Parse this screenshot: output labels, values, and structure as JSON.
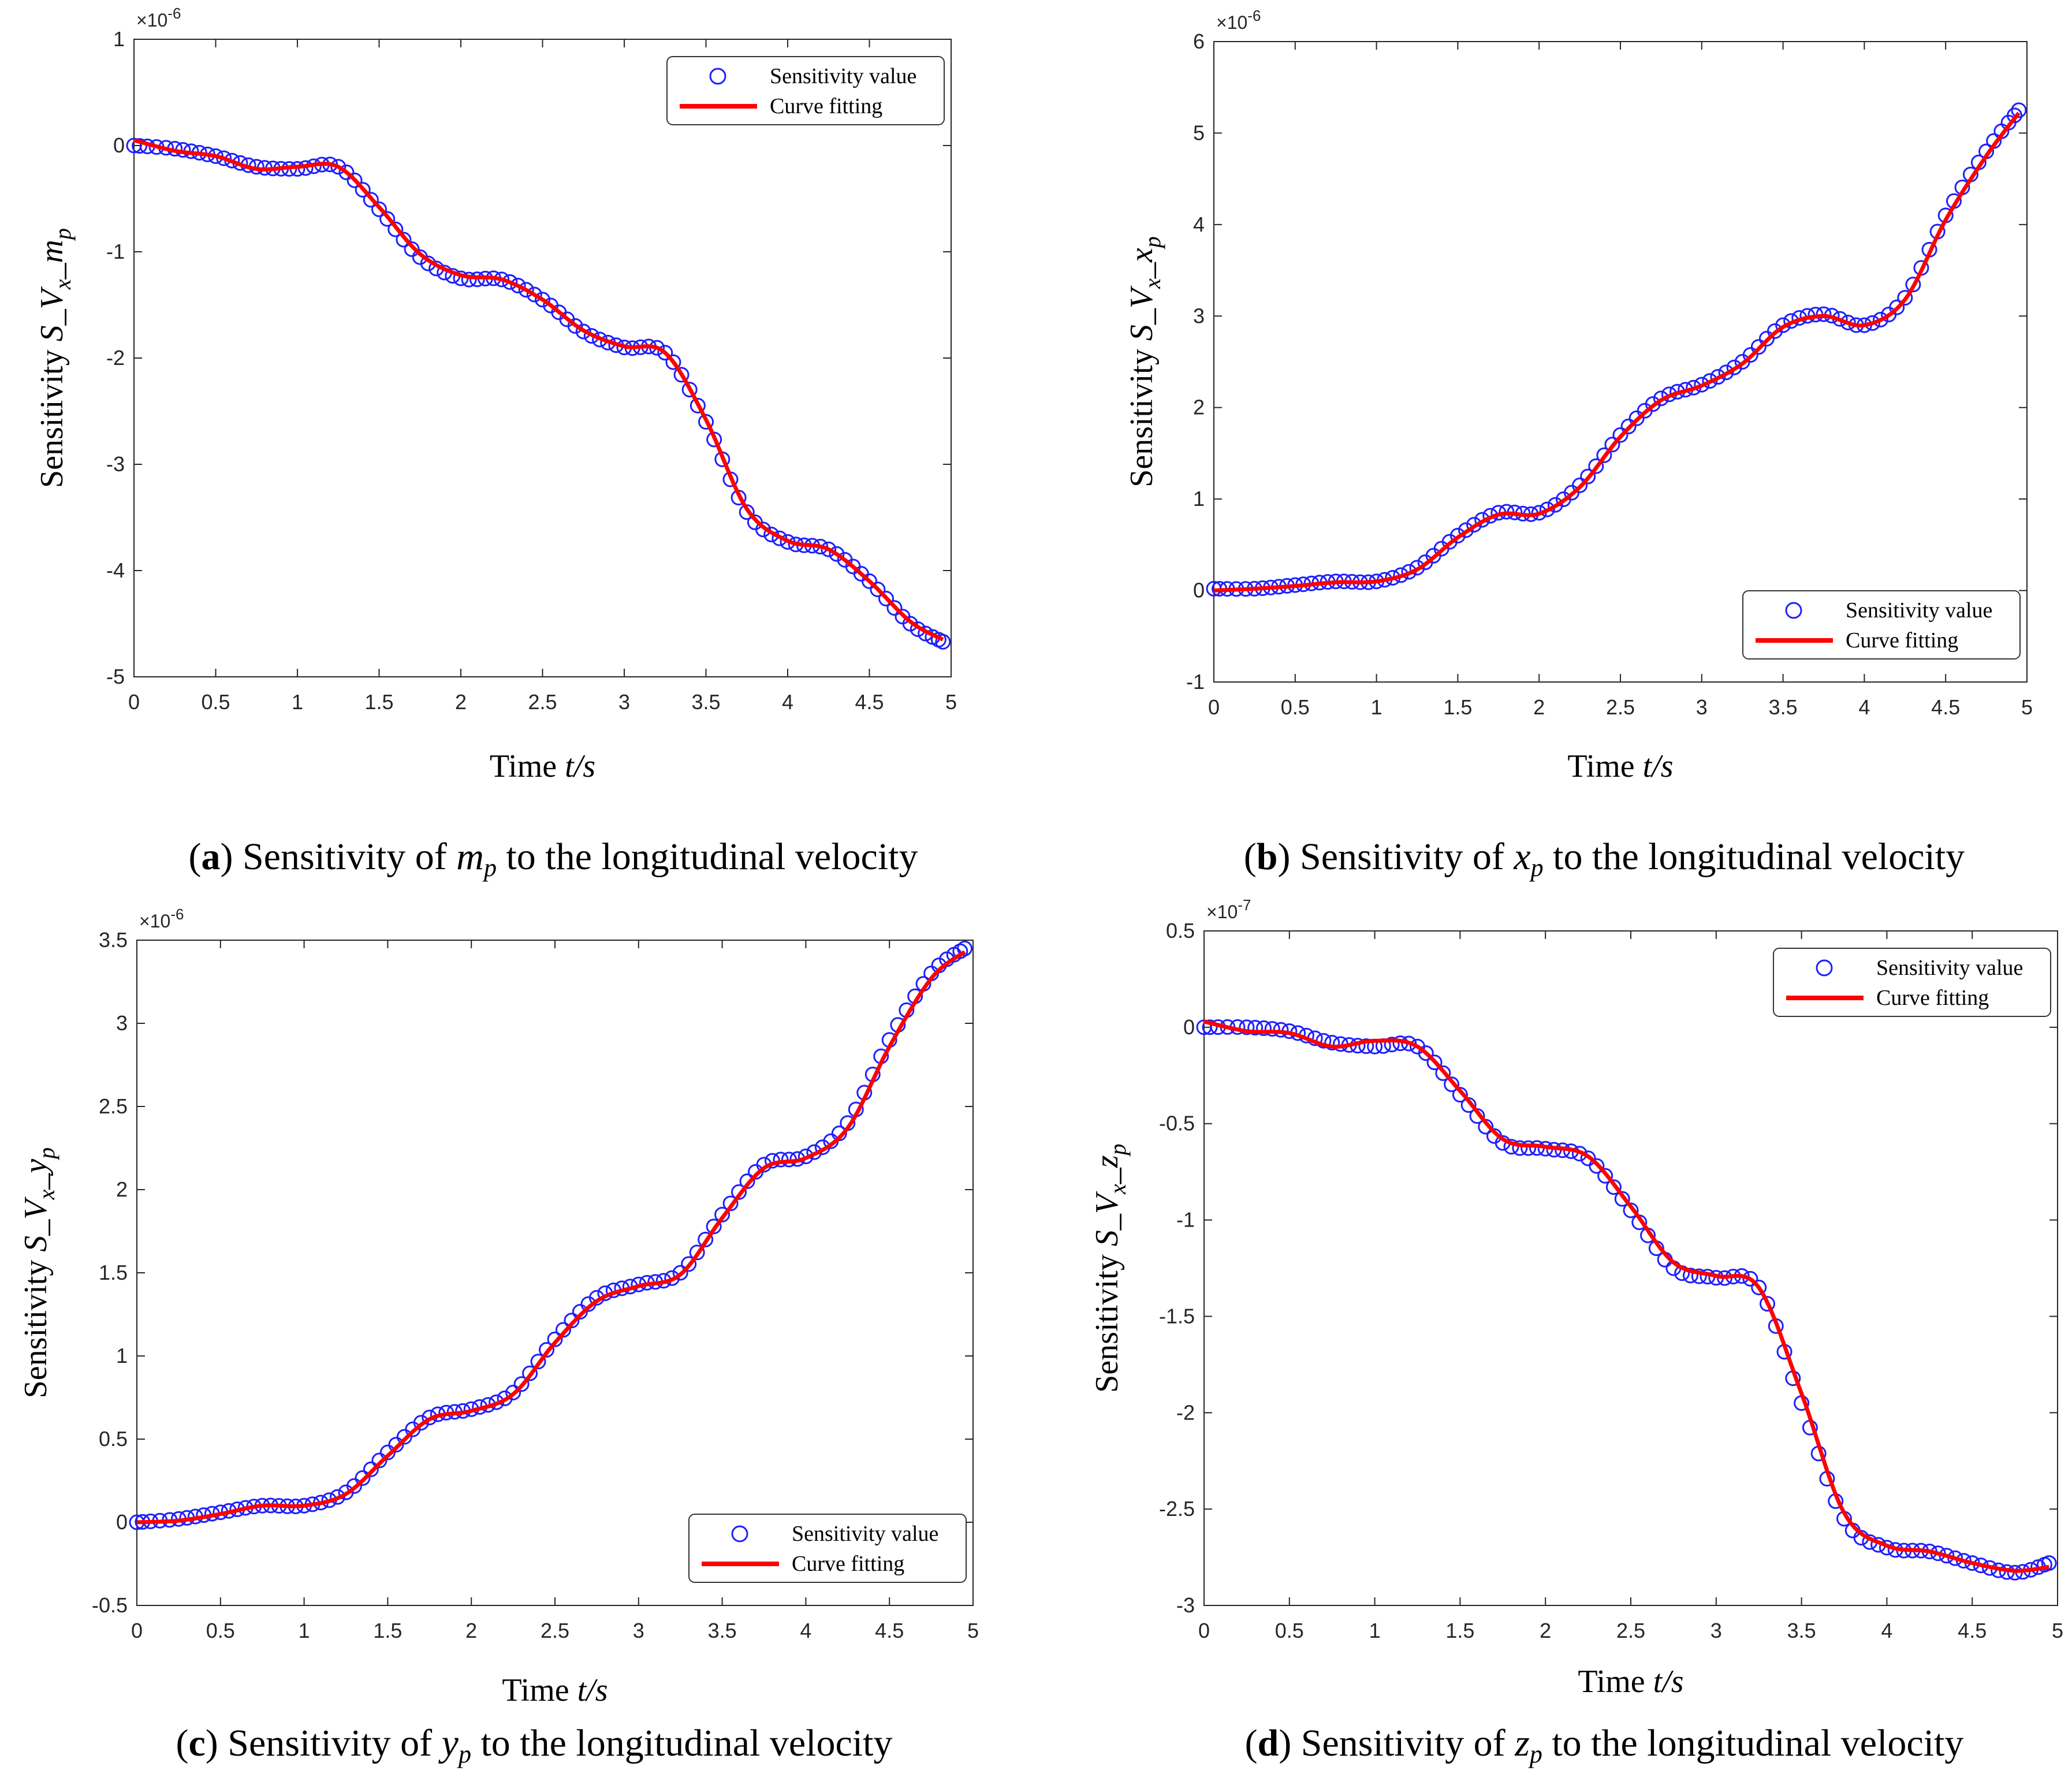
{
  "colors": {
    "markers": "#1f1fff",
    "fit": "#ff0000",
    "axes": "#262626",
    "frame": "#a0a0a0"
  },
  "legend": {
    "sensitivity_label": "Sensitivity value",
    "fit_label": "Curve fitting"
  },
  "x_axis": {
    "label_prefix": "Time ",
    "label_var": "t/s"
  },
  "y_axis": {
    "label_prefix": "Sensitivity  ",
    "label_var": "S_V",
    "label_sub": "x",
    "label_sep": "_"
  },
  "charts": [
    {
      "id": "a",
      "caption": {
        "letter": "a",
        "text": "Sensitivity of ",
        "var": "m",
        "sub": "p",
        "tail": " to the longitudinal velocity"
      },
      "param_var": "m",
      "param_sub": "p",
      "chart_data": {
        "type": "line",
        "xlabel": "Time t/s",
        "ylabel": "Sensitivity S_V_x_m_p",
        "exponent_label": "×10",
        "exponent_power": "-6",
        "xlim": [
          0,
          5
        ],
        "ylim": [
          -5,
          1
        ],
        "xticks": [
          "0",
          "0.5",
          "1",
          "1.5",
          "2",
          "2.5",
          "3",
          "3.5",
          "4",
          "4.5",
          "5"
        ],
        "yticks": [
          {
            "v": 1,
            "t": "1"
          },
          {
            "v": 0,
            "t": "0"
          },
          {
            "v": -1,
            "t": "-1"
          },
          {
            "v": -2,
            "t": "-2"
          },
          {
            "v": -3,
            "t": "-3"
          },
          {
            "v": -4,
            "t": "-4"
          },
          {
            "v": -5,
            "t": "-5"
          }
        ],
        "legend_position": "top-right",
        "series": [
          {
            "name": "Sensitivity value",
            "style": "markers",
            "x": [
              0,
              0.25,
              0.5,
              0.75,
              1.0,
              1.25,
              1.5,
              1.75,
              2.0,
              2.25,
              2.5,
              2.75,
              3.0,
              3.25,
              3.5,
              3.75,
              4.0,
              4.25,
              4.5,
              4.75,
              4.95
            ],
            "y": [
              0,
              -0.03,
              -0.1,
              -0.2,
              -0.22,
              -0.2,
              -0.6,
              -1.05,
              -1.25,
              -1.26,
              -1.45,
              -1.75,
              -1.9,
              -1.95,
              -2.6,
              -3.45,
              -3.73,
              -3.8,
              -4.1,
              -4.5,
              -4.67
            ]
          },
          {
            "name": "Curve fitting",
            "style": "line",
            "x": [
              0,
              0.25,
              0.5,
              0.75,
              1.0,
              1.25,
              1.5,
              1.75,
              2.0,
              2.25,
              2.5,
              2.75,
              3.0,
              3.25,
              3.5,
              3.75,
              4.0,
              4.25,
              4.5,
              4.75,
              4.95
            ],
            "y": [
              0.05,
              -0.05,
              -0.1,
              -0.22,
              -0.2,
              -0.2,
              -0.58,
              -1.02,
              -1.22,
              -1.26,
              -1.45,
              -1.74,
              -1.89,
              -1.95,
              -2.58,
              -3.42,
              -3.72,
              -3.8,
              -4.1,
              -4.48,
              -4.65
            ]
          }
        ]
      }
    },
    {
      "id": "b",
      "caption": {
        "letter": "b",
        "text": "Sensitivity of ",
        "var": "x",
        "sub": "p",
        "tail": " to the longitudinal velocity"
      },
      "param_var": "x",
      "param_sub": "p",
      "chart_data": {
        "type": "line",
        "xlabel": "Time t/s",
        "ylabel": "Sensitivity S_V_x_x_p",
        "exponent_label": "×10",
        "exponent_power": "-6",
        "xlim": [
          0,
          5
        ],
        "ylim": [
          -1,
          6
        ],
        "xticks": [
          "0",
          "0.5",
          "1",
          "1.5",
          "2",
          "2.5",
          "3",
          "3.5",
          "4",
          "4.5",
          "5"
        ],
        "yticks": [
          {
            "v": 6,
            "t": "6"
          },
          {
            "v": 5,
            "t": "5"
          },
          {
            "v": 4,
            "t": "4"
          },
          {
            "v": 3,
            "t": "3"
          },
          {
            "v": 2,
            "t": "2"
          },
          {
            "v": 1,
            "t": "1"
          },
          {
            "v": 0,
            "t": "0"
          },
          {
            "v": -1,
            "t": "-1"
          }
        ],
        "legend_position": "bottom-right",
        "series": [
          {
            "name": "Sensitivity value",
            "style": "markers",
            "x": [
              0,
              0.25,
              0.5,
              0.75,
              1.0,
              1.25,
              1.5,
              1.75,
              2.0,
              2.25,
              2.5,
              2.75,
              3.0,
              3.25,
              3.5,
              3.75,
              4.0,
              4.25,
              4.5,
              4.75,
              4.95
            ],
            "y": [
              0.02,
              0.02,
              0.06,
              0.1,
              0.1,
              0.25,
              0.6,
              0.85,
              0.85,
              1.15,
              1.7,
              2.1,
              2.25,
              2.5,
              2.9,
              3.02,
              2.9,
              3.2,
              4.1,
              4.8,
              5.25
            ]
          },
          {
            "name": "Curve fitting",
            "style": "line",
            "x": [
              0,
              0.25,
              0.5,
              0.75,
              1.0,
              1.25,
              1.5,
              1.75,
              2.0,
              2.25,
              2.5,
              2.75,
              3.0,
              3.25,
              3.5,
              3.75,
              4.0,
              4.25,
              4.5,
              4.75,
              4.95
            ],
            "y": [
              0,
              0.02,
              0.05,
              0.09,
              0.1,
              0.23,
              0.58,
              0.83,
              0.84,
              1.13,
              1.68,
              2.08,
              2.24,
              2.48,
              2.88,
              3.0,
              2.9,
              3.18,
              4.05,
              4.75,
              5.22
            ]
          }
        ]
      }
    },
    {
      "id": "c",
      "caption": {
        "letter": "c",
        "text": "Sensitivity of ",
        "var": "y",
        "sub": "p",
        "tail": " to the longitudinal velocity"
      },
      "param_var": "y",
      "param_sub": "p",
      "chart_data": {
        "type": "line",
        "xlabel": "Time t/s",
        "ylabel": "Sensitivity S_V_x_y_p",
        "exponent_label": "×10",
        "exponent_power": "-6",
        "xlim": [
          0,
          5
        ],
        "ylim": [
          -0.5,
          3.5
        ],
        "xticks": [
          "0",
          "0.5",
          "1",
          "1.5",
          "2",
          "2.5",
          "3",
          "3.5",
          "4",
          "4.5",
          "5"
        ],
        "yticks": [
          {
            "v": 3.5,
            "t": "3.5"
          },
          {
            "v": 3,
            "t": "3"
          },
          {
            "v": 2.5,
            "t": "2.5"
          },
          {
            "v": 2,
            "t": "2"
          },
          {
            "v": 1.5,
            "t": "1.5"
          },
          {
            "v": 1,
            "t": "1"
          },
          {
            "v": 0.5,
            "t": "0.5"
          },
          {
            "v": 0,
            "t": "0"
          },
          {
            "v": -0.5,
            "t": "-0.5"
          }
        ],
        "legend_position": "bottom-right",
        "series": [
          {
            "name": "Sensitivity value",
            "style": "markers",
            "x": [
              0,
              0.25,
              0.5,
              0.75,
              1.0,
              1.25,
              1.5,
              1.75,
              2.0,
              2.25,
              2.5,
              2.75,
              3.0,
              3.25,
              3.5,
              3.75,
              4.0,
              4.25,
              4.5,
              4.75,
              4.95
            ],
            "y": [
              0,
              0.02,
              0.06,
              0.1,
              0.1,
              0.18,
              0.42,
              0.63,
              0.68,
              0.78,
              1.1,
              1.35,
              1.43,
              1.5,
              1.85,
              2.15,
              2.2,
              2.4,
              2.9,
              3.3,
              3.45
            ]
          },
          {
            "name": "Curve fitting",
            "style": "line",
            "x": [
              0,
              0.25,
              0.5,
              0.75,
              1.0,
              1.25,
              1.5,
              1.75,
              2.0,
              2.25,
              2.5,
              2.75,
              3.0,
              3.25,
              3.5,
              3.75,
              4.0,
              4.25,
              4.5,
              4.75,
              4.95
            ],
            "y": [
              0,
              0.01,
              0.05,
              0.1,
              0.1,
              0.17,
              0.4,
              0.62,
              0.67,
              0.77,
              1.08,
              1.33,
              1.42,
              1.49,
              1.83,
              2.13,
              2.19,
              2.37,
              2.86,
              3.27,
              3.43
            ]
          }
        ]
      }
    },
    {
      "id": "d",
      "caption": {
        "letter": "d",
        "text": "Sensitivity of ",
        "var": "z",
        "sub": "p",
        "tail": " to the longitudinal velocity"
      },
      "param_var": "z",
      "param_sub": "p",
      "chart_data": {
        "type": "line",
        "xlabel": "Time t/s",
        "ylabel": "Sensitivity S_V_x_z_p",
        "exponent_label": "×10",
        "exponent_power": "-7",
        "xlim": [
          0,
          5
        ],
        "ylim": [
          -3,
          0.5
        ],
        "xticks": [
          "0",
          "0.5",
          "1",
          "1.5",
          "2",
          "2.5",
          "3",
          "3.5",
          "4",
          "4.5",
          "5"
        ],
        "yticks": [
          {
            "v": 0.5,
            "t": "0.5"
          },
          {
            "v": 0,
            "t": "0"
          },
          {
            "v": -0.5,
            "t": "-0.5"
          },
          {
            "v": -1,
            "t": "-1"
          },
          {
            "v": -1.5,
            "t": "-1.5"
          },
          {
            "v": -2,
            "t": "-2"
          },
          {
            "v": -2.5,
            "t": "-2.5"
          },
          {
            "v": -3,
            "t": "-3"
          }
        ],
        "legend_position": "top-right",
        "series": [
          {
            "name": "Sensitivity value",
            "style": "markers",
            "x": [
              0,
              0.25,
              0.5,
              0.75,
              1.0,
              1.25,
              1.5,
              1.75,
              2.0,
              2.25,
              2.5,
              2.75,
              3.0,
              3.25,
              3.5,
              3.75,
              4.0,
              4.25,
              4.5,
              4.75,
              4.95
            ],
            "y": [
              0,
              0,
              -0.02,
              -0.08,
              -0.1,
              -0.1,
              -0.35,
              -0.6,
              -0.63,
              -0.68,
              -0.95,
              -1.25,
              -1.3,
              -1.35,
              -1.95,
              -2.55,
              -2.7,
              -2.72,
              -2.78,
              -2.83,
              -2.78
            ]
          },
          {
            "name": "Curve fitting",
            "style": "line",
            "x": [
              0,
              0.25,
              0.5,
              0.75,
              1.0,
              1.25,
              1.5,
              1.75,
              2.0,
              2.25,
              2.5,
              2.75,
              3.0,
              3.25,
              3.5,
              3.75,
              4.0,
              4.25,
              4.5,
              4.75,
              4.95
            ],
            "y": [
              0.03,
              -0.02,
              -0.03,
              -0.1,
              -0.07,
              -0.1,
              -0.33,
              -0.58,
              -0.62,
              -0.67,
              -0.93,
              -1.22,
              -1.29,
              -1.35,
              -1.9,
              -2.52,
              -2.69,
              -2.72,
              -2.78,
              -2.82,
              -2.8
            ]
          }
        ]
      }
    }
  ]
}
